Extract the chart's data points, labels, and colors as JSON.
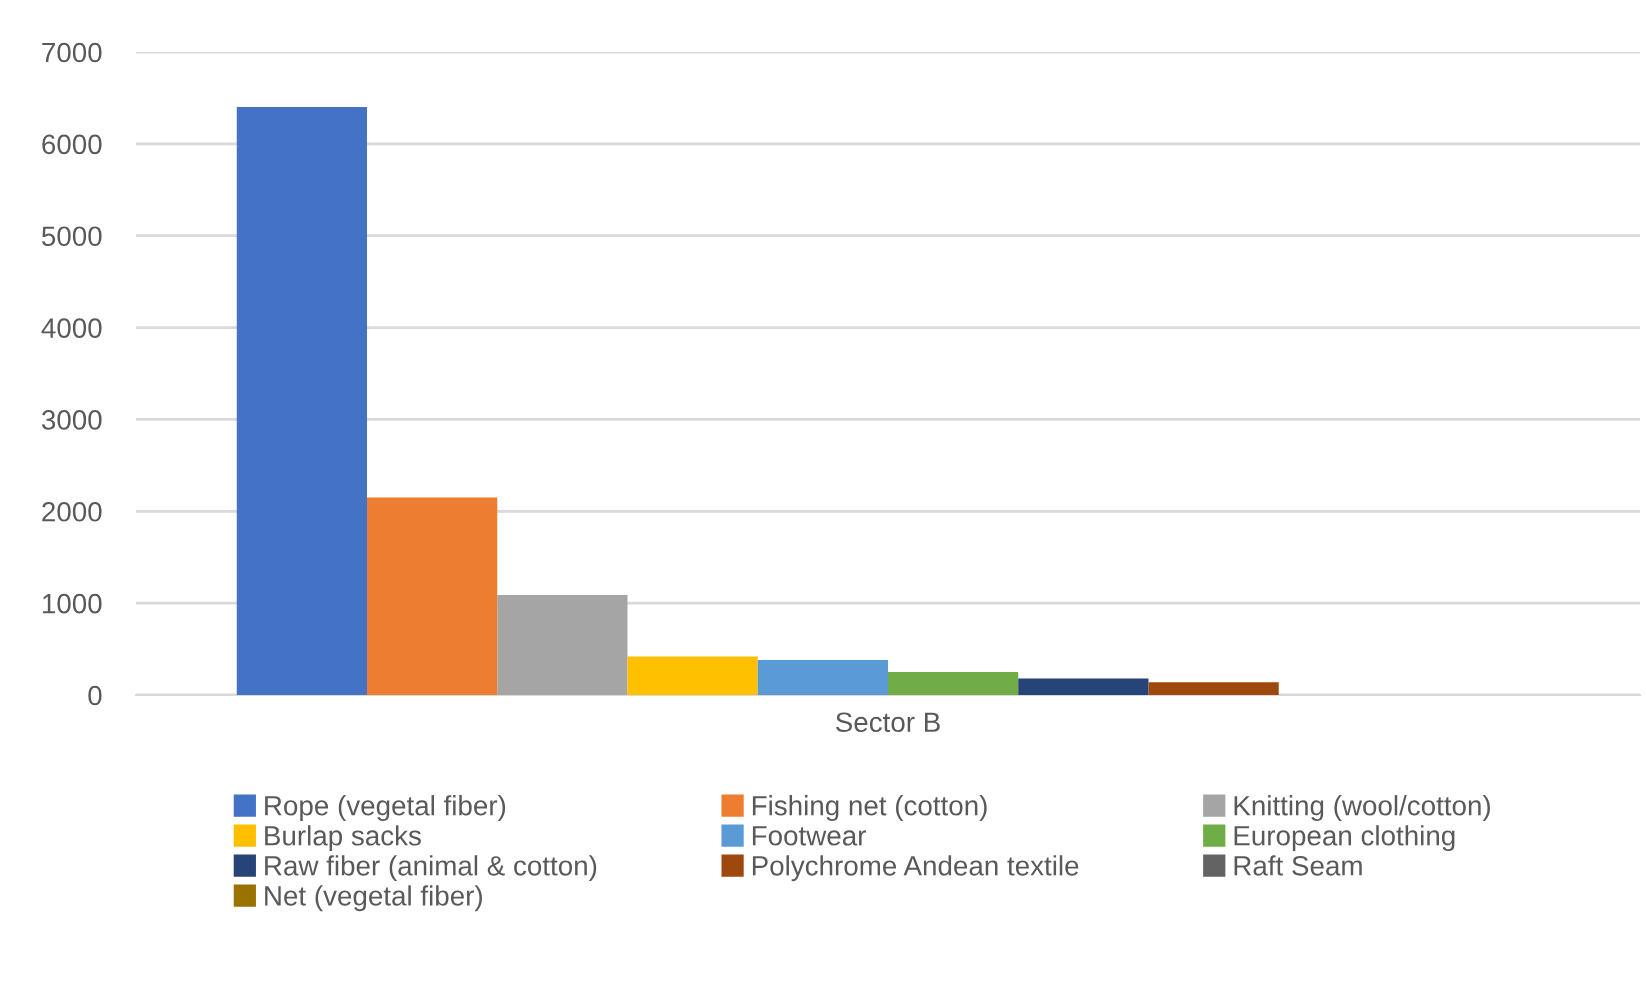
{
  "chart_data": {
    "type": "bar",
    "categories": [
      "Sector B"
    ],
    "series": [
      {
        "name": "Rope (vegetal fiber)",
        "color": "#4472c4",
        "values": [
          6400
        ]
      },
      {
        "name": "Fishing net (cotton)",
        "color": "#ed7d31",
        "values": [
          2150
        ]
      },
      {
        "name": "Knitting (wool/cotton)",
        "color": "#a5a5a5",
        "values": [
          1090
        ]
      },
      {
        "name": "Burlap sacks",
        "color": "#ffc000",
        "values": [
          420
        ]
      },
      {
        "name": "Footwear",
        "color": "#5b9bd5",
        "values": [
          380
        ]
      },
      {
        "name": "European clothing",
        "color": "#70ad47",
        "values": [
          250
        ]
      },
      {
        "name": "Raw fiber (animal & cotton)",
        "color": "#264478",
        "values": [
          180
        ]
      },
      {
        "name": "Polychrome Andean textile",
        "color": "#9e480e",
        "values": [
          140
        ]
      },
      {
        "name": "Raft Seam",
        "color": "#636363",
        "values": [
          null
        ]
      },
      {
        "name": "Net (vegetal fiber)",
        "color": "#997300",
        "values": [
          null
        ]
      }
    ],
    "ylim": [
      0,
      7000
    ],
    "yticks": [
      0,
      1000,
      2000,
      3000,
      4000,
      5000,
      6000,
      7000
    ],
    "grid": "y",
    "legend": "bottom"
  }
}
